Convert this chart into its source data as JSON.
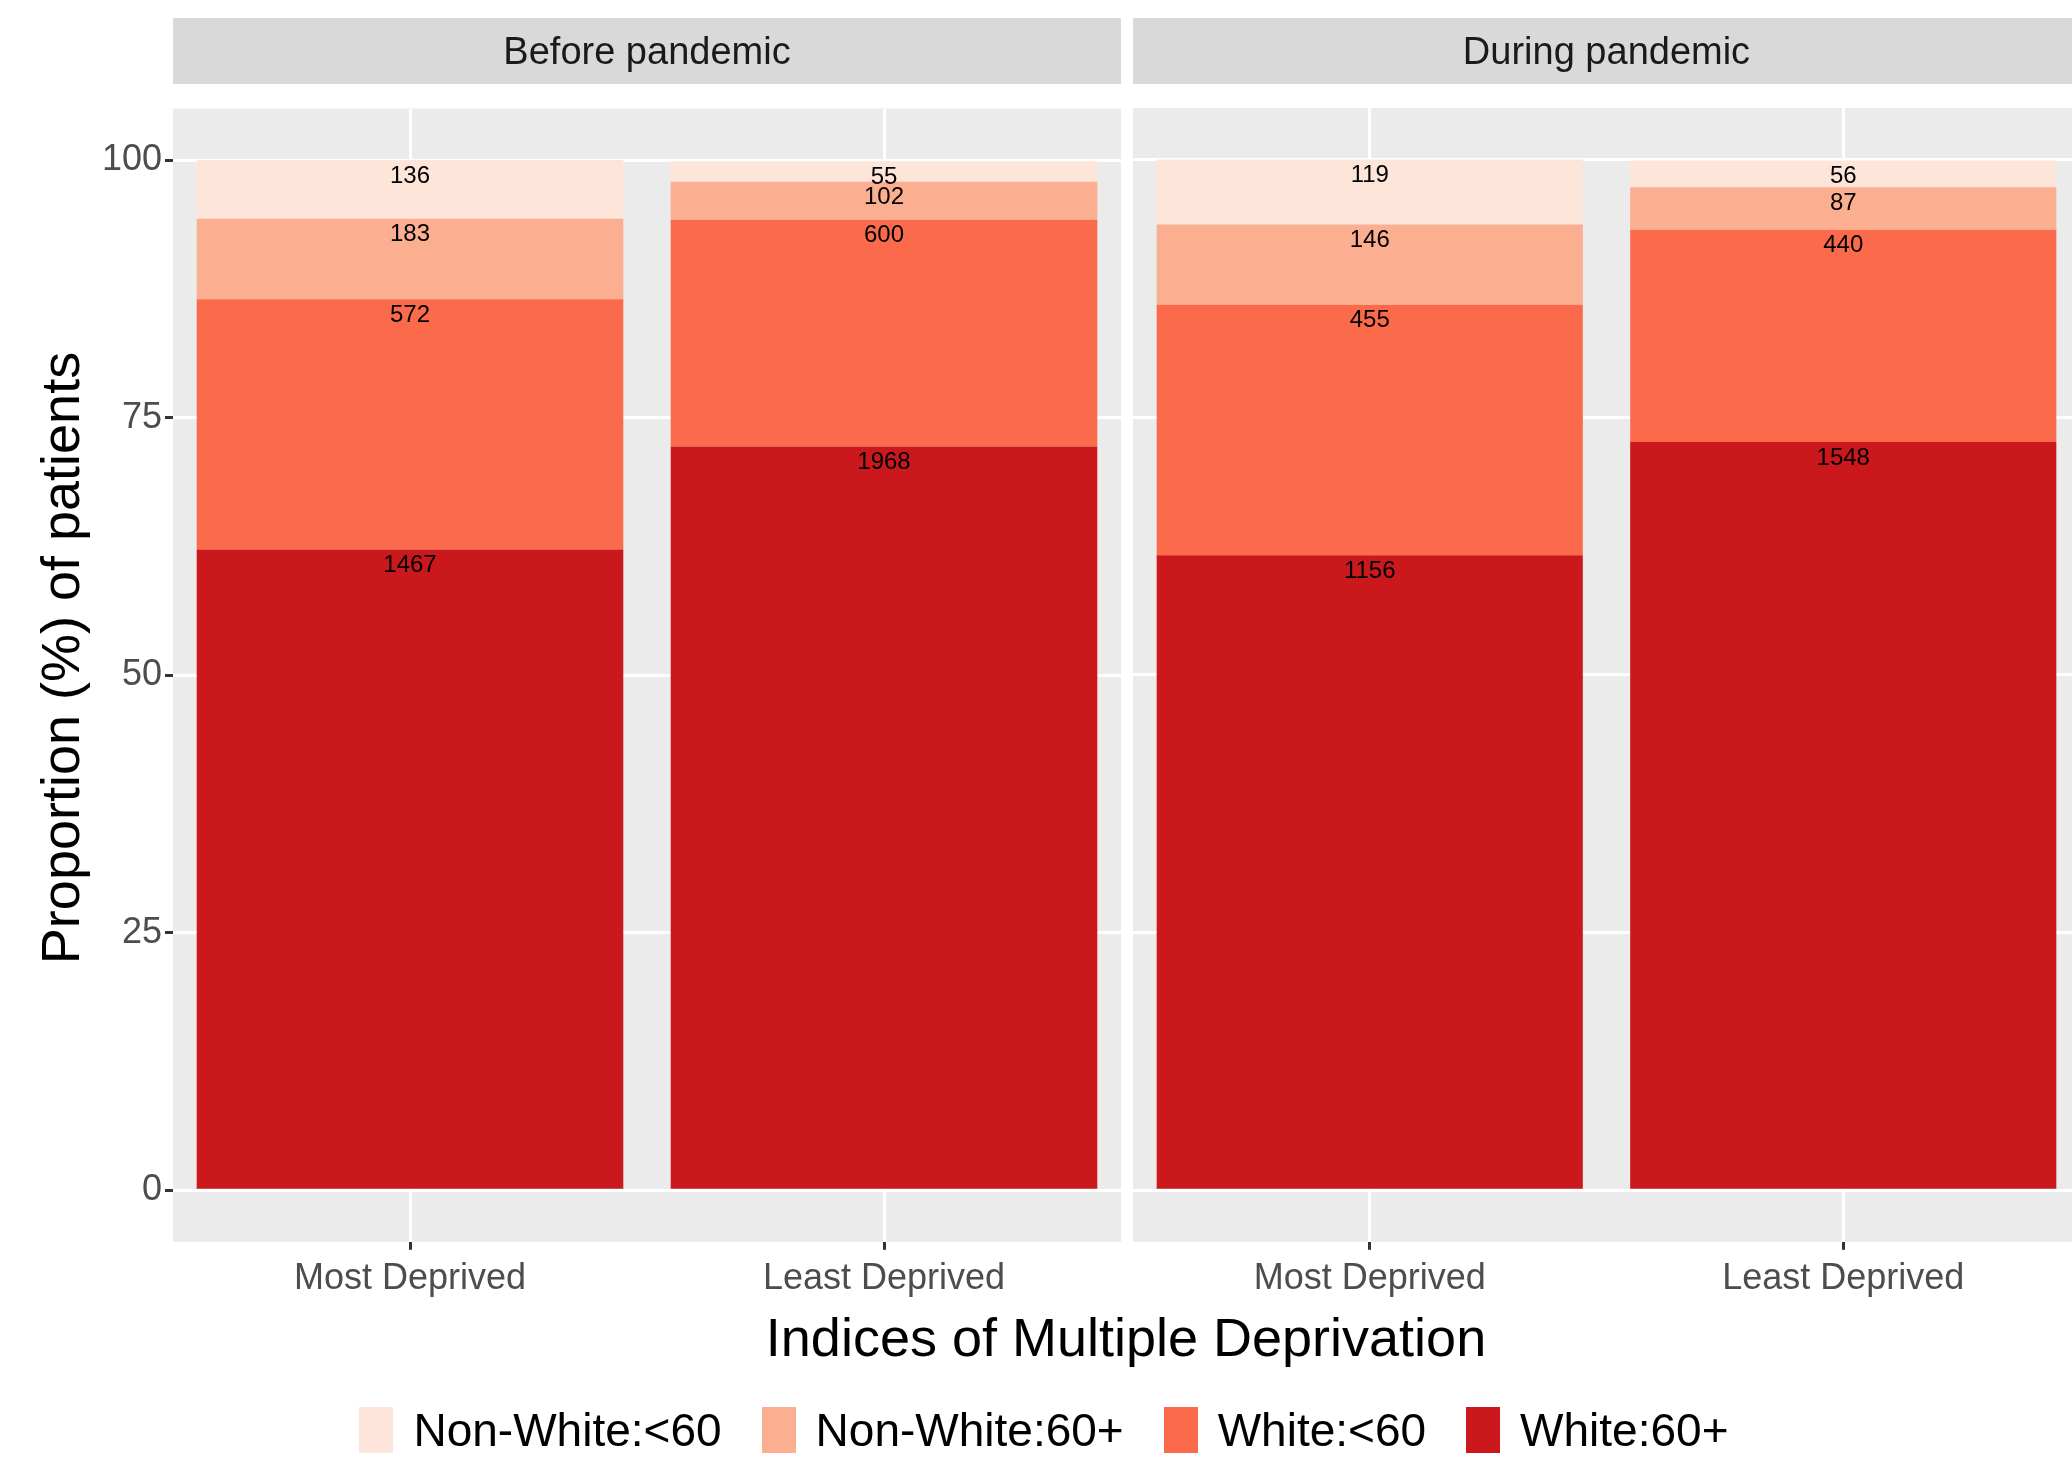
{
  "chart_data": [
    {
      "type": "bar",
      "title": "Before pandemic",
      "xlabel": "Indices of Multiple Deprivation",
      "ylabel": "Proportion (%) of patients",
      "categories": [
        "Most Deprived",
        "Least Deprived"
      ],
      "stacked": true,
      "ylim": [
        -5,
        105
      ],
      "yticks": [
        0,
        25,
        50,
        75,
        100
      ],
      "grid": true,
      "legend": "bottom",
      "series": [
        {
          "name": "White:60+",
          "color": "#cb181d",
          "values": [
            62.2,
            72.2
          ]
        },
        {
          "name": "White:<60",
          "color": "#fb6a4a",
          "values": [
            24.3,
            22.0
          ]
        },
        {
          "name": "Non-White:60+",
          "color": "#fcae91",
          "values": [
            7.8,
            3.7
          ]
        },
        {
          "name": "Non-White:<60",
          "color": "#fee5d9",
          "values": [
            5.7,
            2.0
          ]
        }
      ],
      "annotations": [
        {
          "text": "1467",
          "x": "Most Deprived",
          "y": 62.2
        },
        {
          "text": "1968",
          "x": "Least Deprived",
          "y": 72.2
        },
        {
          "text": "572",
          "x": "Most Deprived",
          "y": 86.5
        },
        {
          "text": "600",
          "x": "Least Deprived",
          "y": 94.2
        },
        {
          "text": "183",
          "x": "Most Deprived",
          "y": 94.3
        },
        {
          "text": "102",
          "x": "Least Deprived",
          "y": 97.9
        },
        {
          "text": "136",
          "x": "Most Deprived",
          "y": 100
        },
        {
          "text": "55",
          "x": "Least Deprived",
          "y": 99.9
        }
      ]
    },
    {
      "type": "bar",
      "title": "During pandemic",
      "categories": [
        "Most Deprived",
        "Least Deprived"
      ],
      "stacked": true,
      "ylim": [
        -5,
        105
      ],
      "yticks": [
        0,
        25,
        50,
        75,
        100
      ],
      "grid": true,
      "tick_labels": "x",
      "series": [
        {
          "color": "#cb181d",
          "values": [
            61.6,
            72.6
          ]
        },
        {
          "color": "#fb6a4a",
          "values": [
            24.3,
            20.6
          ]
        },
        {
          "color": "#fcae91",
          "values": [
            7.8,
            4.1
          ]
        },
        {
          "color": "#fee5d9",
          "values": [
            6.3,
            2.6
          ]
        }
      ],
      "annotations": [
        {
          "text": "1156",
          "x": "Most Deprived",
          "y": 61.6
        },
        {
          "text": "1548",
          "x": "Least Deprived",
          "y": 72.6
        },
        {
          "text": "455",
          "x": "Most Deprived",
          "y": 85.9
        },
        {
          "text": "440",
          "x": "Least Deprived",
          "y": 93.2
        },
        {
          "text": "146",
          "x": "Most Deprived",
          "y": 93.7
        },
        {
          "text": "87",
          "x": "Least Deprived",
          "y": 97.3
        },
        {
          "text": "119",
          "x": "Most Deprived",
          "y": 100
        },
        {
          "text": "56",
          "x": "Least Deprived",
          "y": 99.9
        }
      ]
    }
  ]
}
